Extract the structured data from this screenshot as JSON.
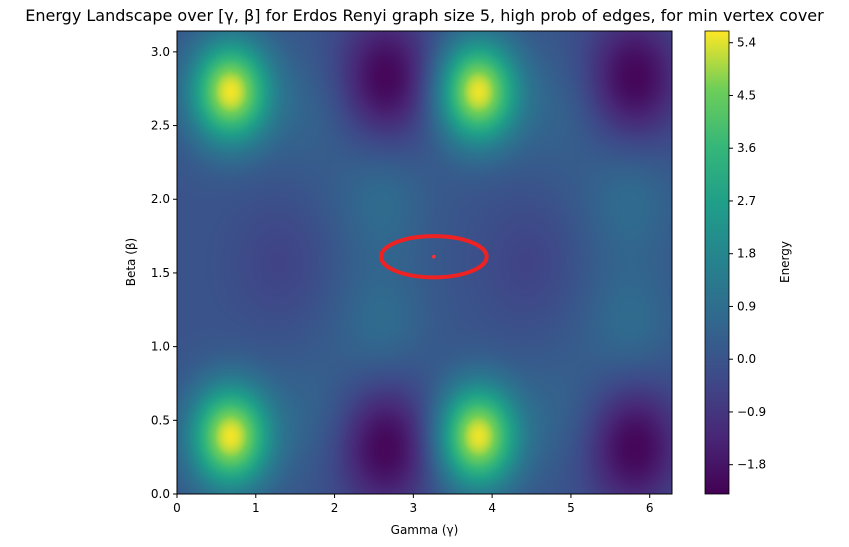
{
  "chart_data": {
    "type": "heatmap",
    "title": "Energy Landscape over [γ, β] for Erdos Renyi graph size 5, high prob of edges, for min vertex cover",
    "xlabel": "Gamma (γ)",
    "ylabel": "Beta (β)",
    "colorbar_label": "Energy",
    "xlim": [
      0,
      6.283
    ],
    "ylim": [
      0,
      3.1416
    ],
    "x_ticks": [
      0,
      1,
      2,
      3,
      4,
      5,
      6
    ],
    "y_ticks": [
      0.0,
      0.5,
      1.0,
      1.5,
      2.0,
      2.5,
      3.0
    ],
    "x_tick_labels": [
      "0",
      "1",
      "2",
      "3",
      "4",
      "5",
      "6"
    ],
    "y_tick_labels": [
      "0.0",
      "0.5",
      "1.0",
      "1.5",
      "2.0",
      "2.5",
      "3.0"
    ],
    "colorbar_range": [
      -2.3,
      5.6
    ],
    "colorbar_ticks": [
      -1.8,
      -0.9,
      0.0,
      0.9,
      1.8,
      2.7,
      3.6,
      4.5,
      5.4
    ],
    "colorbar_tick_labels": [
      "−1.8",
      "−0.9",
      "0.0",
      "0.9",
      "1.8",
      "2.7",
      "3.6",
      "4.5",
      "5.4"
    ],
    "colormap": "viridis",
    "background_value": 0.0,
    "features": [
      {
        "gamma": 0.68,
        "beta": 2.73,
        "energy": 5.5
      },
      {
        "gamma": 3.82,
        "beta": 2.73,
        "energy": 5.5
      },
      {
        "gamma": 0.68,
        "beta": 0.39,
        "energy": 5.5
      },
      {
        "gamma": 3.82,
        "beta": 0.39,
        "energy": 5.5
      },
      {
        "gamma": 2.65,
        "beta": 2.82,
        "energy": -2.2
      },
      {
        "gamma": 5.8,
        "beta": 2.82,
        "energy": -2.2
      },
      {
        "gamma": 2.65,
        "beta": 0.32,
        "energy": -2.2
      },
      {
        "gamma": 5.8,
        "beta": 0.32,
        "energy": -2.2
      },
      {
        "gamma": 2.6,
        "beta": 2.0,
        "energy": 0.8
      },
      {
        "gamma": 5.75,
        "beta": 2.0,
        "energy": 0.8
      },
      {
        "gamma": 2.6,
        "beta": 1.15,
        "energy": 0.8
      },
      {
        "gamma": 5.75,
        "beta": 1.15,
        "energy": 0.8
      },
      {
        "gamma": 1.7,
        "beta": 2.6,
        "energy": 0.5
      },
      {
        "gamma": 4.85,
        "beta": 2.6,
        "energy": 0.5
      },
      {
        "gamma": 1.7,
        "beta": 0.55,
        "energy": 0.5
      },
      {
        "gamma": 4.85,
        "beta": 0.55,
        "energy": 0.5
      },
      {
        "gamma": 1.3,
        "beta": 1.57,
        "energy": -0.5
      },
      {
        "gamma": 4.45,
        "beta": 1.57,
        "energy": -0.5
      }
    ],
    "marker": {
      "gamma": 3.26,
      "beta": 1.61,
      "color": "#ff3333"
    },
    "highlight_ellipse": {
      "center_gamma": 3.26,
      "center_beta": 1.61,
      "half_width_gamma": 0.67,
      "half_height_beta": 0.14,
      "color": "#ee2222"
    }
  }
}
